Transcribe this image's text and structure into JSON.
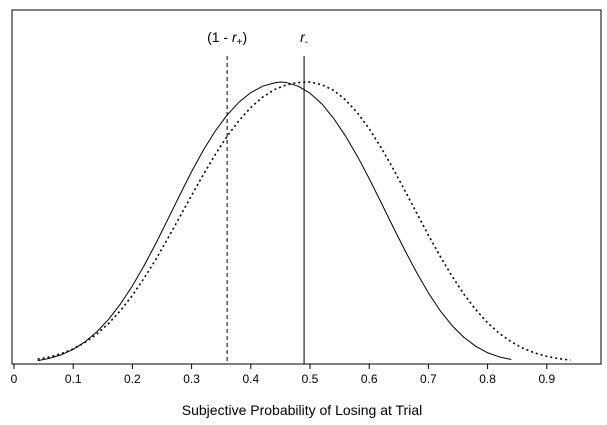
{
  "chart_data": {
    "type": "line",
    "title": "",
    "xlabel": "Subjective Probability of Losing at Trial",
    "ylabel": "",
    "xlim": [
      0,
      1
    ],
    "ylim": [
      0,
      1
    ],
    "y_axis_shown": false,
    "grid": false,
    "legend": "none",
    "x_ticks": [
      0,
      0.1,
      0.2,
      0.3,
      0.4,
      0.5,
      0.6,
      0.7,
      0.8,
      0.9
    ],
    "x_tick_labels": [
      "0",
      "0.1",
      "0.2",
      "0.3",
      "0.4",
      "0.5",
      "0.6",
      "0.7",
      "0.8",
      "0.9"
    ],
    "series": [
      {
        "style": "solid",
        "color": "#000000",
        "x": [
          0.04,
          0.06,
          0.08,
          0.1,
          0.12,
          0.14,
          0.16,
          0.18,
          0.2,
          0.22,
          0.24,
          0.26,
          0.28,
          0.3,
          0.32,
          0.34,
          0.36,
          0.38,
          0.4,
          0.42,
          0.44,
          0.45,
          0.46,
          0.48,
          0.5,
          0.52,
          0.54,
          0.56,
          0.58,
          0.6,
          0.62,
          0.64,
          0.66,
          0.68,
          0.7,
          0.72,
          0.74,
          0.76,
          0.78,
          0.8,
          0.82,
          0.84
        ],
        "y": [
          0.005,
          0.013,
          0.026,
          0.045,
          0.072,
          0.108,
          0.153,
          0.208,
          0.272,
          0.345,
          0.425,
          0.51,
          0.596,
          0.68,
          0.757,
          0.825,
          0.882,
          0.928,
          0.962,
          0.985,
          0.997,
          1.0,
          0.998,
          0.985,
          0.96,
          0.922,
          0.87,
          0.807,
          0.735,
          0.655,
          0.57,
          0.484,
          0.4,
          0.32,
          0.247,
          0.183,
          0.13,
          0.088,
          0.056,
          0.033,
          0.018,
          0.009
        ]
      },
      {
        "style": "dotted",
        "color": "#000000",
        "x": [
          0.04,
          0.06,
          0.08,
          0.1,
          0.12,
          0.14,
          0.16,
          0.18,
          0.2,
          0.22,
          0.24,
          0.26,
          0.28,
          0.3,
          0.32,
          0.34,
          0.36,
          0.38,
          0.4,
          0.42,
          0.44,
          0.46,
          0.48,
          0.5,
          0.52,
          0.54,
          0.56,
          0.58,
          0.6,
          0.62,
          0.64,
          0.66,
          0.68,
          0.7,
          0.72,
          0.74,
          0.76,
          0.78,
          0.8,
          0.82,
          0.84,
          0.86,
          0.88,
          0.9,
          0.92,
          0.94
        ],
        "y": [
          0.01,
          0.018,
          0.03,
          0.047,
          0.07,
          0.1,
          0.138,
          0.184,
          0.238,
          0.3,
          0.368,
          0.442,
          0.518,
          0.595,
          0.67,
          0.741,
          0.806,
          0.862,
          0.909,
          0.946,
          0.973,
          0.99,
          0.998,
          1.0,
          0.99,
          0.97,
          0.936,
          0.89,
          0.833,
          0.766,
          0.692,
          0.613,
          0.533,
          0.453,
          0.377,
          0.306,
          0.242,
          0.187,
          0.14,
          0.102,
          0.072,
          0.049,
          0.032,
          0.02,
          0.012,
          0.007
        ]
      }
    ],
    "vlines": [
      {
        "x": 0.36,
        "style": "dashed",
        "label_prefix": "(1 - ",
        "label_var": "r",
        "label_sub": "+",
        "label_suffix": ")"
      },
      {
        "x": 0.49,
        "style": "solid",
        "label_prefix": "",
        "label_var": "r",
        "label_sub": "-",
        "label_suffix": ""
      }
    ]
  }
}
